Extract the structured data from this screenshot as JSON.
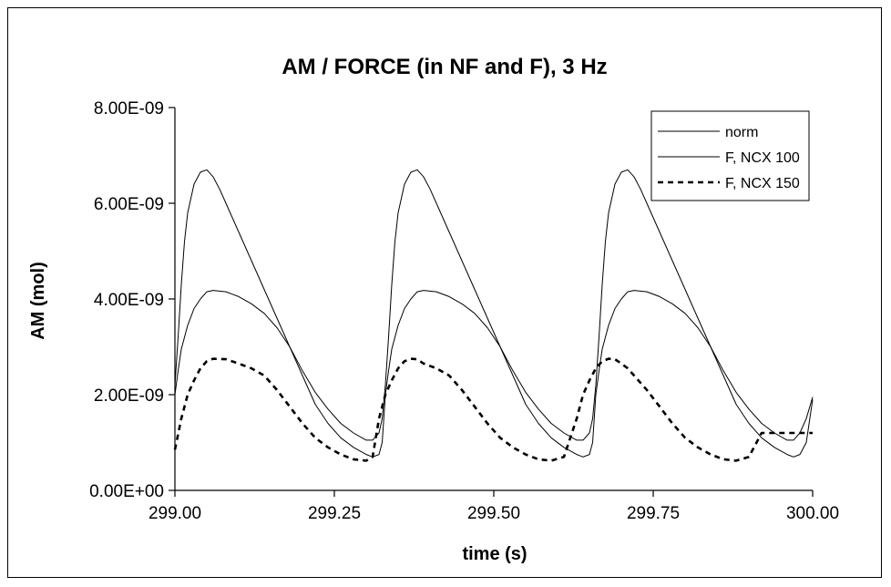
{
  "chart_data": {
    "type": "line",
    "title": "AM / FORCE (in NF and F), 3 Hz",
    "xlabel": "time (s)",
    "ylabel": "AM (mol)",
    "xlim": [
      299.0,
      300.0
    ],
    "ylim": [
      0,
      8e-09
    ],
    "x_ticks": [
      299.0,
      299.25,
      299.5,
      299.75,
      300.0
    ],
    "x_tick_labels": [
      "299.00",
      "299.25",
      "299.50",
      "299.75",
      "300.00"
    ],
    "y_ticks": [
      0,
      2e-09,
      4e-09,
      6e-09,
      8e-09
    ],
    "y_tick_labels": [
      "0.00E+00",
      "2.00E-09",
      "4.00E-09",
      "6.00E-09",
      "8.00E-09"
    ],
    "grid": false,
    "legend_position": "top-right",
    "series": [
      {
        "name": "norm",
        "style": "solid",
        "x": [
          299.0,
          299.005,
          299.01,
          299.015,
          299.02,
          299.03,
          299.04,
          299.05,
          299.06,
          299.07,
          299.08,
          299.1,
          299.12,
          299.14,
          299.16,
          299.18,
          299.2,
          299.22,
          299.24,
          299.26,
          299.28,
          299.3,
          299.31,
          299.32,
          299.325,
          299.33,
          299.335,
          299.34,
          299.345,
          299.35,
          299.36,
          299.37,
          299.38,
          299.39,
          299.4,
          299.41,
          299.43,
          299.45,
          299.47,
          299.49,
          299.51,
          299.53,
          299.55,
          299.57,
          299.59,
          299.61,
          299.63,
          299.64,
          299.65,
          299.655,
          299.66,
          299.665,
          299.67,
          299.675,
          299.68,
          299.69,
          299.7,
          299.71,
          299.72,
          299.73,
          299.74,
          299.76,
          299.78,
          299.8,
          299.82,
          299.84,
          299.86,
          299.88,
          299.9,
          299.92,
          299.94,
          299.96,
          299.97,
          299.98,
          299.99,
          300.0
        ],
        "y": [
          2.2e-09,
          3.2e-09,
          4.3e-09,
          5.2e-09,
          5.8e-09,
          6.4e-09,
          6.65e-09,
          6.7e-09,
          6.55e-09,
          6.3e-09,
          6e-09,
          5.4e-09,
          4.8e-09,
          4.2e-09,
          3.6e-09,
          3e-09,
          2.5e-09,
          2.05e-09,
          1.7e-09,
          1.4e-09,
          1.2e-09,
          1.05e-09,
          1.05e-09,
          1.2e-09,
          1.5e-09,
          2.2e-09,
          3.2e-09,
          4.3e-09,
          5.2e-09,
          5.8e-09,
          6.4e-09,
          6.65e-09,
          6.7e-09,
          6.55e-09,
          6.3e-09,
          6e-09,
          5.4e-09,
          4.8e-09,
          4.2e-09,
          3.6e-09,
          3e-09,
          2.5e-09,
          2.05e-09,
          1.7e-09,
          1.4e-09,
          1.2e-09,
          1.05e-09,
          1.05e-09,
          1.2e-09,
          1.5e-09,
          2.2e-09,
          3.2e-09,
          4.3e-09,
          5.2e-09,
          5.8e-09,
          6.4e-09,
          6.65e-09,
          6.7e-09,
          6.55e-09,
          6.3e-09,
          6e-09,
          5.4e-09,
          4.8e-09,
          4.2e-09,
          3.6e-09,
          3e-09,
          2.5e-09,
          2.05e-09,
          1.7e-09,
          1.4e-09,
          1.2e-09,
          1.05e-09,
          1.05e-09,
          1.2e-09,
          1.5e-09,
          1.95e-09
        ]
      },
      {
        "name": "F, NCX 100",
        "style": "solid",
        "x": [
          299.0,
          299.005,
          299.01,
          299.02,
          299.03,
          299.04,
          299.05,
          299.06,
          299.08,
          299.1,
          299.12,
          299.14,
          299.16,
          299.18,
          299.2,
          299.22,
          299.24,
          299.26,
          299.28,
          299.3,
          299.31,
          299.32,
          299.325,
          299.33,
          299.335,
          299.34,
          299.35,
          299.36,
          299.37,
          299.38,
          299.39,
          299.41,
          299.43,
          299.45,
          299.47,
          299.49,
          299.51,
          299.53,
          299.55,
          299.57,
          299.59,
          299.61,
          299.63,
          299.64,
          299.65,
          299.655,
          299.66,
          299.665,
          299.67,
          299.68,
          299.69,
          299.7,
          299.71,
          299.72,
          299.74,
          299.76,
          299.78,
          299.8,
          299.82,
          299.84,
          299.86,
          299.88,
          299.9,
          299.92,
          299.94,
          299.96,
          299.97,
          299.98,
          299.99,
          300.0
        ],
        "y": [
          2e-09,
          2.5e-09,
          2.95e-09,
          3.45e-09,
          3.8e-09,
          4e-09,
          4.15e-09,
          4.18e-09,
          4.15e-09,
          4.05e-09,
          3.9e-09,
          3.7e-09,
          3.4e-09,
          3e-09,
          2.4e-09,
          1.8e-09,
          1.4e-09,
          1.1e-09,
          9e-10,
          7.5e-10,
          7e-10,
          7.5e-10,
          1e-09,
          2e-09,
          2.5e-09,
          2.95e-09,
          3.45e-09,
          3.8e-09,
          4e-09,
          4.15e-09,
          4.18e-09,
          4.15e-09,
          4.05e-09,
          3.9e-09,
          3.7e-09,
          3.4e-09,
          3e-09,
          2.4e-09,
          1.8e-09,
          1.4e-09,
          1.1e-09,
          9e-10,
          7.5e-10,
          7e-10,
          7.5e-10,
          1e-09,
          2e-09,
          2.5e-09,
          2.95e-09,
          3.45e-09,
          3.8e-09,
          4e-09,
          4.15e-09,
          4.18e-09,
          4.15e-09,
          4.05e-09,
          3.9e-09,
          3.7e-09,
          3.4e-09,
          3e-09,
          2.4e-09,
          1.8e-09,
          1.4e-09,
          1.1e-09,
          9e-10,
          7.5e-10,
          7e-10,
          7.5e-10,
          1e-09,
          1.9e-09
        ]
      },
      {
        "name": "F, NCX 150",
        "style": "dashed",
        "x": [
          299.0,
          299.01,
          299.02,
          299.03,
          299.04,
          299.05,
          299.06,
          299.08,
          299.1,
          299.12,
          299.14,
          299.16,
          299.18,
          299.2,
          299.22,
          299.24,
          299.26,
          299.28,
          299.3,
          299.31,
          299.32,
          299.33,
          299.34,
          299.35,
          299.36,
          299.37,
          299.38,
          299.39,
          299.41,
          299.43,
          299.45,
          299.47,
          299.49,
          299.51,
          299.53,
          299.55,
          299.57,
          299.59,
          299.61,
          299.63,
          299.64,
          299.65,
          299.66,
          299.67,
          299.68,
          299.69,
          299.7,
          299.71,
          299.72,
          299.74,
          299.76,
          299.78,
          299.8,
          299.82,
          299.84,
          299.86,
          299.88,
          299.9,
          299.92,
          299.94,
          299.96,
          299.97,
          299.98,
          299.99,
          300.0
        ],
        "y": [
          8.5e-10,
          1.5e-09,
          2e-09,
          2.3e-09,
          2.55e-09,
          2.7e-09,
          2.75e-09,
          2.74e-09,
          2.65e-09,
          2.55e-09,
          2.4e-09,
          2.1e-09,
          1.75e-09,
          1.4e-09,
          1.1e-09,
          9e-10,
          7.5e-10,
          6.5e-10,
          6.2e-10,
          7e-10,
          1.5e-09,
          2e-09,
          2.3e-09,
          2.55e-09,
          2.7e-09,
          2.75e-09,
          2.74e-09,
          2.65e-09,
          2.55e-09,
          2.4e-09,
          2.1e-09,
          1.75e-09,
          1.4e-09,
          1.1e-09,
          9e-10,
          7.5e-10,
          6.5e-10,
          6.2e-10,
          7e-10,
          1.5e-09,
          2e-09,
          2.3e-09,
          2.55e-09,
          2.7e-09,
          2.75e-09,
          2.74e-09,
          2.65e-09,
          2.55e-09,
          2.4e-09,
          2.1e-09,
          1.75e-09,
          1.4e-09,
          1.1e-09,
          9e-10,
          7.5e-10,
          6.5e-10,
          6.2e-10,
          7e-10,
          1.2e-09,
          1.2e-09,
          1.2e-09,
          1.2e-09,
          1.2e-09,
          1.2e-09,
          1.2e-09
        ]
      }
    ]
  }
}
